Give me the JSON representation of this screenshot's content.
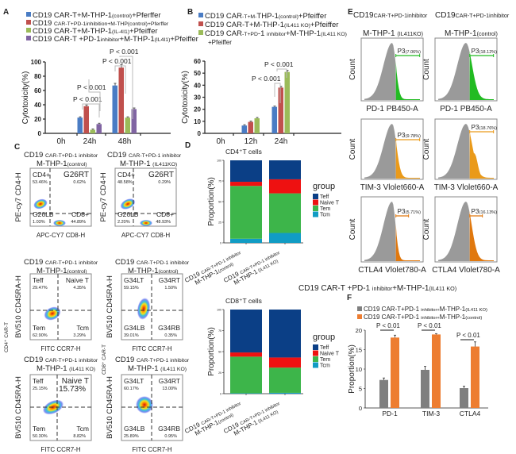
{
  "panel_labels": {
    "A": "A",
    "B": "B",
    "C": "C",
    "D": "D",
    "E": "E",
    "F": "F"
  },
  "chart_data": [
    {
      "id": "A",
      "type": "bar",
      "categories": [
        "0h",
        "24h",
        "48h"
      ],
      "ylabel": "Cytotoxicity(%)",
      "ylim": [
        0,
        100
      ],
      "yticks": [
        "0",
        "20",
        "40",
        "60",
        "80",
        "100"
      ],
      "series": [
        {
          "color": "#4a7cc4",
          "values": [
            0,
            22,
            67
          ],
          "label": [
            {
              "t": "CD19 CAR-T+M-THP-1"
            },
            {
              "t": "(control)",
              "sub": true
            },
            {
              "t": "+Pferffer"
            }
          ]
        },
        {
          "color": "#c0504d",
          "values": [
            0,
            38,
            92
          ],
          "label": [
            {
              "t": "CD19 "
            },
            {
              "t": "CAR-T+PD-1inhibition+M-THP(control)+Pferffer",
              "sub": true
            }
          ]
        },
        {
          "color": "#9bbb59",
          "values": [
            0,
            5,
            22
          ],
          "label": [
            {
              "t": "CD19 CAR-T+M-THP-1"
            },
            {
              "t": "(IL-4I1)",
              "sub": true
            },
            {
              "t": "+Pfeiffer"
            }
          ]
        },
        {
          "color": "#8064a2",
          "values": [
            0,
            13,
            34
          ],
          "label": [
            {
              "t": "CD19 CAR-T +PD-1"
            },
            {
              "t": "inhibitor",
              "sub": true
            },
            {
              "t": "+M-THP-1"
            },
            {
              "t": "(IL4I1)",
              "sub": true
            },
            {
              "t": "+Pfeiffer"
            }
          ]
        }
      ],
      "annotations": [
        "P < 0.001",
        "P < 0.001",
        "P < 0.001",
        "P < 0.001"
      ]
    },
    {
      "id": "B",
      "type": "bar",
      "categories": [
        "0h",
        "12h",
        "24h"
      ],
      "ylabel": "Cytotoxicity(%)",
      "ylim": [
        0,
        60
      ],
      "yticks": [
        "0",
        "10",
        "20",
        "30",
        "40",
        "50",
        "60"
      ],
      "series": [
        {
          "color": "#4a7cc4",
          "values": [
            0,
            6.5,
            22
          ],
          "label": [
            {
              "t": "CD19 CAR"
            },
            {
              "t": "-T+M-",
              "sub": true
            },
            {
              "t": "THP-1"
            },
            {
              "t": "(control)",
              "sub": true
            },
            {
              "t": "+Pfeiffer"
            }
          ]
        },
        {
          "color": "#c0504d",
          "values": [
            0,
            9.5,
            38
          ],
          "label": [
            {
              "t": "CD19 CAR-T+M-THP-1"
            },
            {
              "t": "(IL411 KO)",
              "sub": true
            },
            {
              "t": "+Pfeiffer"
            }
          ]
        },
        {
          "color": "#9bbb59",
          "values": [
            0,
            12.5,
            51
          ],
          "label": [
            {
              "t": "CD19 CAR"
            },
            {
              "t": "-T+PD",
              "sub": true
            },
            {
              "t": "-1 "
            },
            {
              "t": "inhibitor",
              "sub": true
            },
            {
              "t": "+M-THP-1"
            },
            {
              "t": "(IL411 KO)",
              "sub": true
            }
          ]
        }
      ],
      "legend_extra": "+Pfeiffer",
      "annotations": [
        "P < 0.001",
        "P < 0.001"
      ]
    },
    {
      "id": "D-CD4",
      "type": "bar",
      "stacked": true,
      "title": "CD4⁺T cells",
      "ylabel": "Proportion(%)",
      "ylim": [
        0,
        100
      ],
      "yticks": [
        "0",
        "25",
        "50",
        "75",
        "100"
      ],
      "legend_title": "group",
      "categories": [
        [
          {
            "t": "CD19 "
          },
          {
            "t": "CAR-T+PD-1 inhibitor",
            "sub": true
          },
          {
            "t": "M-THP-1",
            "br": true
          },
          {
            "t": "(control)",
            "sub": true
          }
        ],
        [
          {
            "t": "CD19 "
          },
          {
            "t": "CAR-T+PD-1 inhibitor",
            "sub": true
          },
          {
            "t": "M-THP-1",
            "br": true
          },
          {
            "t": " (IL411 KO)",
            "sub": true
          }
        ]
      ],
      "series": [
        {
          "name": "Tcm",
          "color": "#119cc4",
          "values": [
            5,
            12
          ]
        },
        {
          "name": "Tem",
          "color": "#3db54a",
          "values": [
            64,
            48
          ]
        },
        {
          "name": "Naive T",
          "color": "#ee1111",
          "values": [
            5,
            17
          ]
        },
        {
          "name": "Teff",
          "color": "#0b3f86",
          "values": [
            26,
            23
          ]
        }
      ]
    },
    {
      "id": "D-CD8",
      "type": "bar",
      "stacked": true,
      "title": "CD8⁺T cells",
      "ylabel": "Proportion(%)",
      "ylim": [
        0,
        100
      ],
      "yticks": [
        "0",
        "25",
        "50",
        "75",
        "100"
      ],
      "legend_title": "group",
      "categories": [
        [
          {
            "t": "CD19 "
          },
          {
            "t": "CAR-T+PD-1 inhibitor",
            "sub": true
          },
          {
            "t": "M-THP-1",
            "br": true
          },
          {
            "t": "(control)",
            "sub": true
          }
        ],
        [
          {
            "t": "CD19 "
          },
          {
            "t": "CAR-T+PD-1 inhibitor",
            "sub": true
          },
          {
            "t": "M-THP-1",
            "br": true
          },
          {
            "t": " (IL411 KO)",
            "sub": true
          }
        ]
      ],
      "series": [
        {
          "name": "Tcm",
          "color": "#119cc4",
          "values": [
            0.5,
            1
          ]
        },
        {
          "name": "Tem",
          "color": "#3db54a",
          "values": [
            43.5,
            30
          ]
        },
        {
          "name": "Naive T",
          "color": "#ee1111",
          "values": [
            5,
            12
          ]
        },
        {
          "name": "Teff",
          "color": "#0b3f86",
          "values": [
            51,
            57
          ]
        }
      ]
    },
    {
      "id": "F",
      "type": "bar",
      "categories": [
        "PD-1",
        "TIM-3",
        "CTLA4"
      ],
      "ylabel": "Proportion(%)",
      "ylim": [
        0,
        20
      ],
      "yticks": [
        "0",
        "5",
        "10",
        "15",
        "20"
      ],
      "series": [
        {
          "color": "#7f7f7f",
          "values": [
            7.2,
            9.8,
            5.1
          ],
          "errors": [
            0.5,
            0.9,
            0.5
          ],
          "label": [
            {
              "t": "CD19 CAR-T+PD-1 "
            },
            {
              "t": "inhibitor+",
              "sub": true
            },
            {
              "t": "M-THP-1"
            },
            {
              "t": "(IL411 KO)",
              "sub": true
            }
          ]
        },
        {
          "color": "#ed7d31",
          "values": [
            18.1,
            18.9,
            15.8
          ],
          "errors": [
            0.6,
            0.2,
            1.2
          ],
          "label": [
            {
              "t": "CD19 CAR-T+PD-1 "
            },
            {
              "t": "inhibitor+",
              "sub": true
            },
            {
              "t": "M-THP-1"
            },
            {
              "t": "(control)",
              "sub": true
            }
          ]
        }
      ],
      "annotations": [
        "P < 0.01",
        "P < 0.01",
        "P < 0.01"
      ]
    }
  ],
  "panel_c": {
    "side_labels": [
      "CD4⁺ CAR-T",
      "CD8⁺ CAR-T"
    ],
    "plots": [
      {
        "title1": [
          {
            "t": "CD19 "
          },
          {
            "t": "CAR-T+PD-1 inhibitor",
            "sub": true
          }
        ],
        "title2": [
          {
            "t": "M-THP-1"
          },
          {
            "t": "(control)",
            "sub": true
          }
        ],
        "ylabel": "PE-cy7 CD4-H",
        "xlabel": "APC-CY7 CD8-H",
        "quadrants": [
          [
            "CD4+",
            "53.46%"
          ],
          [
            "G26RT",
            "0.62%"
          ],
          [
            "G26LB",
            "1.03%"
          ],
          [
            "CD8+",
            "44.89%"
          ]
        ]
      },
      {
        "title1": [
          {
            "t": "CD19 "
          },
          {
            "t": "CAR-T+PD-1 inhibitor",
            "sub": true
          }
        ],
        "title2": [
          {
            "t": "M-THP-1 "
          },
          {
            "t": "(IL411KO)",
            "sub": true
          }
        ],
        "ylabel": "PE-cy7 CD4-H",
        "xlabel": "APC-CY7 CD8-H",
        "quadrants": [
          [
            "CD4+",
            "48.58%"
          ],
          [
            "G26RT",
            "0.29%"
          ],
          [
            "G26LB",
            "2.20%"
          ],
          [
            "CD8+",
            "48.93%"
          ]
        ]
      },
      {
        "title1": [
          {
            "t": "CD19 "
          },
          {
            "t": "CAR-T+PD-1 inhibitor",
            "sub": true
          }
        ],
        "title2": [
          {
            "t": "M-THP-1"
          },
          {
            "t": "(control)",
            "sub": true
          }
        ],
        "ylabel": "BV510 CD45RA-H",
        "xlabel": "FITC CCR7-H",
        "quadrants": [
          [
            "Teff",
            "29.47%"
          ],
          [
            "Naive T",
            "4.35%"
          ],
          [
            "Tem",
            "62.90%"
          ],
          [
            "Tcm",
            "3.29%"
          ]
        ]
      },
      {
        "title1": [
          {
            "t": "CD19 "
          },
          {
            "t": "CAR-T+PD-1 inhibitor",
            "sub": true
          }
        ],
        "title2": [
          {
            "t": "M-THP-1"
          },
          {
            "t": "(control)",
            "sub": true
          }
        ],
        "ylabel": "BV510 CD45RA-H",
        "xlabel": "FITC CCR7-H",
        "quadrants": [
          [
            "G34LT",
            "59.15%"
          ],
          [
            "G34RT",
            "1.50%"
          ],
          [
            "G34LB",
            "39.01%"
          ],
          [
            "G34RB",
            "0.35%"
          ]
        ]
      },
      {
        "title1": [
          {
            "t": "CD19 "
          },
          {
            "t": "CAR-T+PD-1 inhibitor",
            "sub": true
          }
        ],
        "title2": [
          {
            "t": "M-THP-1 "
          },
          {
            "t": "(IL411 KO)",
            "sub": true
          }
        ],
        "ylabel": "BV510 CD45RA-H",
        "xlabel": "FITC CCR7-H",
        "quadrants": [
          [
            "Teff",
            "25.15%"
          ],
          [
            "Naive T",
            "15.73%"
          ],
          [
            "Tem",
            "50.30%"
          ],
          [
            "Tcm",
            "8.82%"
          ]
        ]
      },
      {
        "title1": [
          {
            "t": "CD19 "
          },
          {
            "t": "CAR-T+PD-1 inhibitor",
            "sub": true
          }
        ],
        "title2": [
          {
            "t": "M-THP-1 "
          },
          {
            "t": "(IL411 KO)",
            "sub": true
          }
        ],
        "ylabel": "BV510 CD45RA-H",
        "xlabel": "FITC CCR7-H",
        "quadrants": [
          [
            "G34LT",
            "60.17%"
          ],
          [
            "G34RT",
            "13.00%"
          ],
          [
            "G34LB",
            "25.89%"
          ],
          [
            "G34RB",
            "0.95%"
          ]
        ]
      }
    ]
  },
  "panel_e": {
    "columns": [
      {
        "title1": [
          {
            "t": "CD19"
          },
          {
            "t": "CAR-T+PD-1inhibitor",
            "sub": true
          }
        ],
        "title2": [
          {
            "t": "M-THP-1 "
          },
          {
            "t": "(IL411KO)",
            "sub": true
          }
        ]
      },
      {
        "title1": [
          {
            "t": "CD19"
          },
          {
            "t": "CAR-T+PD-1inhibitor",
            "sub": true
          }
        ],
        "title2": [
          {
            "t": "M-THP-1"
          },
          {
            "t": "(control)",
            "sub": true
          }
        ]
      }
    ],
    "ylabel": "Count",
    "gate": "P3",
    "rows": [
      {
        "xlabel": "PD-1 PB450-A",
        "color": "#22bb22",
        "percents": [
          "(7.06%)",
          "(18.12%)"
        ],
        "positive_fraction": [
          0.0706,
          0.1812
        ]
      },
      {
        "xlabel": "TIM-3 Vlolet660-A",
        "color": "#ea9a1a",
        "percents": [
          "(9.78%)",
          "(18.76%)"
        ],
        "positive_fraction": [
          0.0978,
          0.1876
        ]
      },
      {
        "xlabel": "CTLA4 Vlolet780-A",
        "color": "#e0780e",
        "percents": [
          "(5.71%)",
          "(16.13%)"
        ],
        "positive_fraction": [
          0.0571,
          0.1613
        ]
      }
    ]
  },
  "shared_caption": [
    {
      "t": "CD19 CAR-T +PD-1 "
    },
    {
      "t": "inhibitor",
      "sub": true
    },
    {
      "t": "+M-THP-1"
    },
    {
      "t": "(IL411 KO)",
      "sub": true
    }
  ]
}
